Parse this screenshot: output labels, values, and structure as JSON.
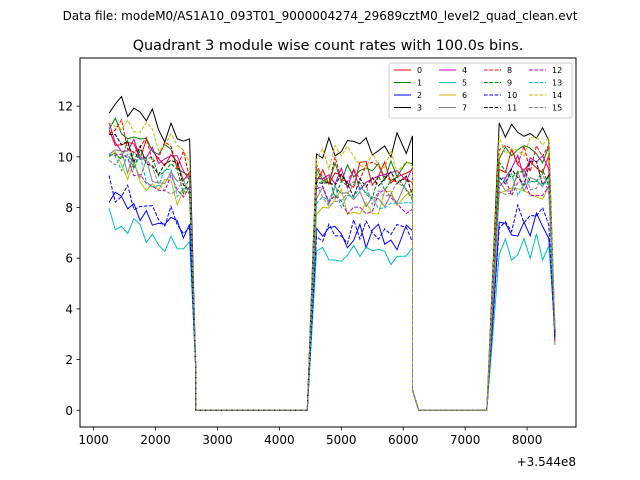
{
  "figure": {
    "suptitle": "Data file: modeM0/AS1A10_093T01_9000004274_29689cztM0_level2_quad_clean.evt"
  },
  "chart_data": {
    "type": "line",
    "title": "Quadrant 3 module wise count rates with 100.0s bins.",
    "xlabel": "",
    "ylabel": "",
    "x_offset_label": "+3.544e8",
    "xlim": [
      780,
      8790
    ],
    "ylim": [
      -0.66,
      13.9
    ],
    "xticks": [
      1000,
      2000,
      3000,
      4000,
      5000,
      6000,
      7000,
      8000
    ],
    "yticks": [
      0,
      2,
      4,
      6,
      8,
      10,
      12
    ],
    "legend_position": "upper right",
    "grid": false,
    "segments": [
      {
        "start": 1250,
        "end": 2550
      },
      {
        "start": 4600,
        "end": 5950
      },
      {
        "start": 6050,
        "end": 6150
      },
      {
        "start": 7550,
        "end": 8350
      }
    ],
    "zero_points": [
      [
        2650,
        0
      ],
      [
        2750,
        0
      ],
      [
        4450,
        0
      ],
      [
        6250,
        0
      ],
      [
        7350,
        0
      ]
    ],
    "tail_points": [
      [
        2650,
        1.6
      ],
      [
        6150,
        0.8
      ],
      [
        8450,
        3.0
      ]
    ],
    "series": [
      {
        "name": "0",
        "color": "#ff0000",
        "dash": false,
        "level": 9.4
      },
      {
        "name": "1",
        "color": "#008000",
        "dash": false,
        "level": 9.6
      },
      {
        "name": "2",
        "color": "#0000ff",
        "dash": false,
        "level": 6.9
      },
      {
        "name": "3",
        "color": "#000000",
        "dash": false,
        "level": 10.6
      },
      {
        "name": "4",
        "color": "#bf00bf",
        "dash": false,
        "level": 9.3
      },
      {
        "name": "5",
        "color": "#00bfbf",
        "dash": false,
        "level": 6.1
      },
      {
        "name": "6",
        "color": "#bfbf00",
        "dash": false,
        "level": 8.3
      },
      {
        "name": "7",
        "color": "#808080",
        "dash": false,
        "level": 8.6
      },
      {
        "name": "8",
        "color": "#ff0000",
        "dash": true,
        "level": 9.6
      },
      {
        "name": "9",
        "color": "#008000",
        "dash": true,
        "level": 8.9
      },
      {
        "name": "10",
        "color": "#0000ff",
        "dash": true,
        "level": 7.2
      },
      {
        "name": "11",
        "color": "#000000",
        "dash": true,
        "level": 9.0
      },
      {
        "name": "12",
        "color": "#bf00bf",
        "dash": true,
        "level": 8.4
      },
      {
        "name": "13",
        "color": "#00bfbf",
        "dash": true,
        "level": 8.6
      },
      {
        "name": "14",
        "color": "#bfbf00",
        "dash": true,
        "level": 10.0
      },
      {
        "name": "15",
        "color": "#808080",
        "dash": true,
        "level": 8.7
      }
    ]
  }
}
